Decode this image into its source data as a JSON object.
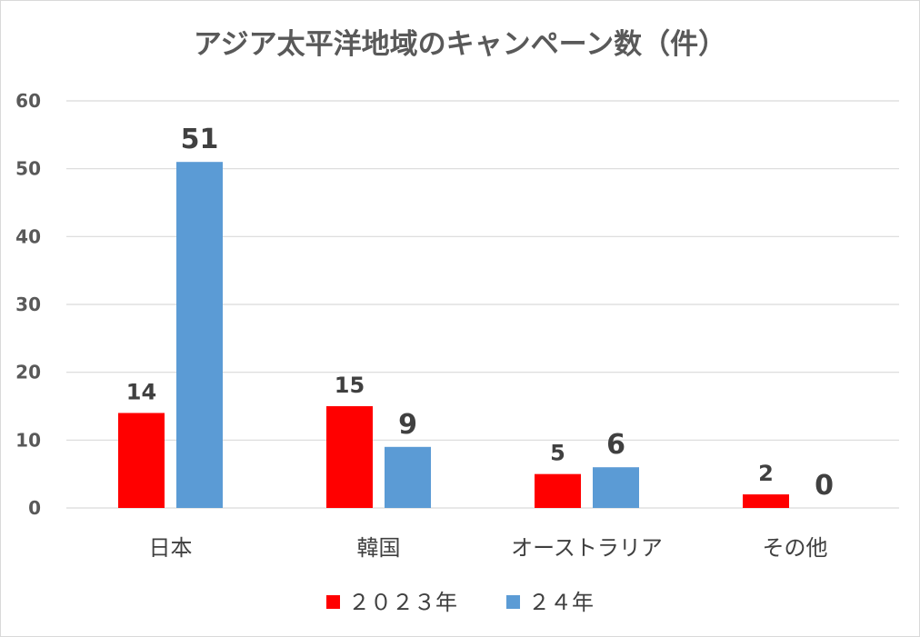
{
  "chart_data": {
    "type": "bar",
    "title": "アジア太平洋地域のキャンペーン数（件）",
    "categories": [
      "日本",
      "韓国",
      "オーストラリア",
      "その他"
    ],
    "series": [
      {
        "name": "２０２３年",
        "color": "#ff0000",
        "values": [
          14,
          15,
          5,
          2
        ]
      },
      {
        "name": "２４年",
        "color": "#5b9bd5",
        "values": [
          51,
          9,
          6,
          0
        ]
      }
    ],
    "ylim": [
      0,
      60
    ],
    "yticks": [
      "0",
      "10",
      "20",
      "30",
      "40",
      "50",
      "60"
    ],
    "grid": true,
    "legend": "bottom",
    "data_labels": true
  }
}
